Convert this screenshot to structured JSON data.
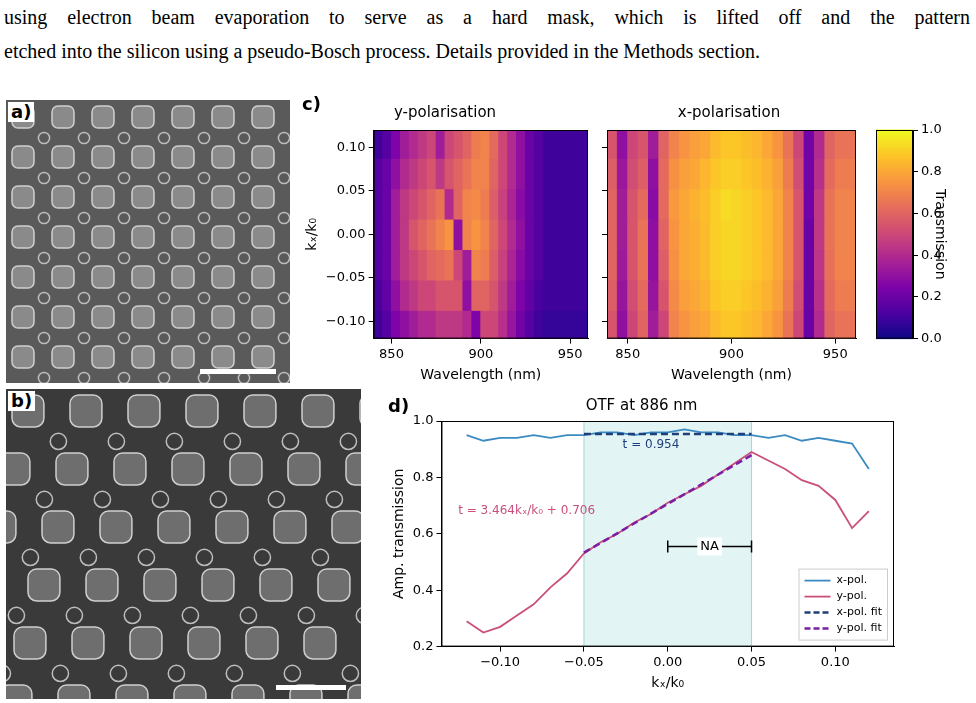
{
  "page_text": [
    "using electron beam evaporation to serve as a hard mask, which is lifted off and the pattern",
    "etched into the silicon using a pseudo-Bosch process. Details provided in the Methods section."
  ],
  "images": [
    {
      "label": "a)"
    },
    {
      "label": "b)"
    }
  ],
  "chart_data": [
    {
      "type": "heatmap",
      "label": "c)",
      "title": "y-polarisation",
      "x_label": "Wavelength (nm)",
      "y_label": "kₓ/k₀",
      "grid": false,
      "xlim": [
        840,
        960
      ],
      "xticks": [
        850,
        900,
        950
      ],
      "ylim": [
        -0.12,
        0.12
      ],
      "yticks": [
        {
          "value": -0.1,
          "label": "−0.10"
        },
        {
          "value": -0.05,
          "label": "−0.05"
        },
        {
          "value": 0,
          "label": "0.00"
        },
        {
          "value": 0.05,
          "label": "0.05"
        },
        {
          "value": 0.1,
          "label": "0.10"
        }
      ],
      "x": [
        842.5,
        847.5,
        852.5,
        857.5,
        862.5,
        867.5,
        872.5,
        877.5,
        882.5,
        887.5,
        892.5,
        897.5,
        902.5,
        907.5,
        912.5,
        917.5,
        922.5,
        927.5,
        932.5,
        937.5,
        942.5,
        947.5,
        952.5,
        957.5
      ],
      "y": [
        -0.105,
        -0.07,
        -0.035,
        0,
        0.035,
        0.07,
        0.105
      ],
      "values": [
        [
          0.1,
          0.15,
          0.25,
          0.3,
          0.35,
          0.4,
          0.4,
          0.45,
          0.45,
          0.45,
          0.4,
          0.25,
          0.5,
          0.5,
          0.42,
          0.32,
          0.22,
          0.15,
          0.1,
          0.08,
          0.08,
          0.08,
          0.08,
          0.08
        ],
        [
          0.12,
          0.18,
          0.3,
          0.4,
          0.45,
          0.5,
          0.5,
          0.55,
          0.55,
          0.55,
          0.3,
          0.6,
          0.6,
          0.55,
          0.45,
          0.35,
          0.25,
          0.18,
          0.12,
          0.1,
          0.1,
          0.1,
          0.1,
          0.1
        ],
        [
          0.15,
          0.2,
          0.35,
          0.45,
          0.5,
          0.55,
          0.6,
          0.62,
          0.65,
          0.5,
          0.35,
          0.7,
          0.68,
          0.58,
          0.48,
          0.38,
          0.28,
          0.2,
          0.15,
          0.1,
          0.1,
          0.1,
          0.1,
          0.1
        ],
        [
          0.15,
          0.2,
          0.35,
          0.45,
          0.55,
          0.6,
          0.65,
          0.7,
          0.75,
          0.3,
          0.7,
          0.75,
          0.7,
          0.6,
          0.5,
          0.4,
          0.3,
          0.2,
          0.15,
          0.1,
          0.1,
          0.1,
          0.1,
          0.1
        ],
        [
          0.15,
          0.2,
          0.35,
          0.45,
          0.5,
          0.55,
          0.6,
          0.65,
          0.4,
          0.6,
          0.7,
          0.72,
          0.68,
          0.58,
          0.48,
          0.38,
          0.28,
          0.2,
          0.15,
          0.1,
          0.1,
          0.1,
          0.1,
          0.1
        ],
        [
          0.15,
          0.2,
          0.3,
          0.4,
          0.45,
          0.5,
          0.55,
          0.45,
          0.55,
          0.6,
          0.65,
          0.7,
          0.7,
          0.6,
          0.5,
          0.4,
          0.3,
          0.2,
          0.15,
          0.1,
          0.1,
          0.1,
          0.1,
          0.1
        ],
        [
          0.1,
          0.15,
          0.25,
          0.35,
          0.4,
          0.45,
          0.5,
          0.35,
          0.5,
          0.55,
          0.6,
          0.68,
          0.7,
          0.62,
          0.5,
          0.4,
          0.3,
          0.2,
          0.15,
          0.1,
          0.1,
          0.1,
          0.1,
          0.1
        ]
      ]
    },
    {
      "type": "heatmap",
      "title": "x-polarisation",
      "x_label": "Wavelength (nm)",
      "grid": false,
      "tick_labels": "x",
      "xlim": [
        840,
        960
      ],
      "xticks": [
        850,
        900,
        950
      ],
      "ylim": [
        -0.12,
        0.12
      ],
      "yticks": [
        -0.1,
        -0.05,
        0,
        0.05,
        0.1
      ],
      "x": [
        842.5,
        847.5,
        852.5,
        857.5,
        862.5,
        867.5,
        872.5,
        877.5,
        882.5,
        887.5,
        892.5,
        897.5,
        902.5,
        907.5,
        912.5,
        917.5,
        922.5,
        927.5,
        932.5,
        937.5,
        942.5,
        947.5,
        952.5,
        957.5
      ],
      "y": [
        -0.105,
        -0.07,
        -0.035,
        0,
        0.035,
        0.07,
        0.105
      ],
      "values": [
        [
          0.55,
          0.3,
          0.5,
          0.6,
          0.35,
          0.5,
          0.7,
          0.75,
          0.78,
          0.8,
          0.85,
          0.88,
          0.88,
          0.86,
          0.84,
          0.8,
          0.75,
          0.65,
          0.5,
          0.2,
          0.4,
          0.6,
          0.65,
          0.65
        ],
        [
          0.58,
          0.32,
          0.52,
          0.62,
          0.32,
          0.55,
          0.72,
          0.78,
          0.8,
          0.83,
          0.88,
          0.9,
          0.9,
          0.88,
          0.86,
          0.83,
          0.78,
          0.68,
          0.52,
          0.2,
          0.42,
          0.62,
          0.68,
          0.68
        ],
        [
          0.6,
          0.34,
          0.55,
          0.65,
          0.3,
          0.58,
          0.74,
          0.8,
          0.82,
          0.85,
          0.9,
          0.92,
          0.92,
          0.9,
          0.88,
          0.85,
          0.8,
          0.7,
          0.55,
          0.2,
          0.44,
          0.64,
          0.7,
          0.7
        ],
        [
          0.6,
          0.35,
          0.55,
          0.65,
          0.3,
          0.6,
          0.75,
          0.8,
          0.82,
          0.85,
          0.9,
          0.92,
          0.92,
          0.9,
          0.88,
          0.85,
          0.8,
          0.7,
          0.55,
          0.2,
          0.45,
          0.65,
          0.7,
          0.7
        ],
        [
          0.6,
          0.35,
          0.55,
          0.62,
          0.28,
          0.62,
          0.76,
          0.8,
          0.83,
          0.86,
          0.9,
          0.93,
          0.92,
          0.9,
          0.88,
          0.85,
          0.8,
          0.7,
          0.55,
          0.22,
          0.45,
          0.65,
          0.7,
          0.7
        ],
        [
          0.58,
          0.33,
          0.52,
          0.58,
          0.3,
          0.62,
          0.74,
          0.78,
          0.8,
          0.84,
          0.88,
          0.9,
          0.9,
          0.88,
          0.86,
          0.83,
          0.78,
          0.68,
          0.52,
          0.22,
          0.42,
          0.62,
          0.68,
          0.68
        ],
        [
          0.55,
          0.3,
          0.5,
          0.55,
          0.35,
          0.6,
          0.7,
          0.75,
          0.78,
          0.8,
          0.85,
          0.88,
          0.88,
          0.86,
          0.84,
          0.8,
          0.75,
          0.65,
          0.5,
          0.22,
          0.4,
          0.6,
          0.65,
          0.65
        ]
      ],
      "colorbar": {
        "label": "Transmission",
        "range": [
          0,
          1
        ],
        "ticks": [
          {
            "value": 0,
            "label": "0.0"
          },
          0.2,
          0.4,
          0.6,
          0.8,
          {
            "value": 1,
            "label": "1.0"
          }
        ]
      }
    },
    {
      "type": "line",
      "label": "d)",
      "title": "OTF at 886 nm",
      "x_label": "kₓ/k₀",
      "y_label": "Amp. transmission",
      "grid": false,
      "legend": "lower right",
      "xlim": [
        -0.135,
        0.135
      ],
      "xticks": [
        {
          "value": -0.1,
          "label": "−0.10"
        },
        {
          "value": -0.05,
          "label": "−0.05"
        },
        {
          "value": 0,
          "label": "0.00"
        },
        {
          "value": 0.05,
          "label": "0.05"
        },
        {
          "value": 0.1,
          "label": "0.10"
        }
      ],
      "ylim": [
        0.2,
        1.0
      ],
      "yticks": [
        0.2,
        0.4,
        0.6,
        0.8,
        {
          "value": 1,
          "label": "1.0"
        }
      ],
      "x": [
        -0.12,
        -0.11,
        -0.1,
        -0.09,
        -0.08,
        -0.07,
        -0.06,
        -0.05,
        -0.04,
        -0.03,
        -0.02,
        -0.01,
        0,
        0.01,
        0.02,
        0.03,
        0.04,
        0.05,
        0.06,
        0.07,
        0.08,
        0.09,
        0.1,
        0.11,
        0.12
      ],
      "series": [
        {
          "name": "x-pol.",
          "color": "#3b8bc2",
          "line_style": "solid",
          "values": [
            0.95,
            0.93,
            0.94,
            0.94,
            0.95,
            0.94,
            0.95,
            0.95,
            0.96,
            0.96,
            0.95,
            0.96,
            0.96,
            0.97,
            0.96,
            0.96,
            0.95,
            0.95,
            0.94,
            0.95,
            0.93,
            0.94,
            0.93,
            0.92,
            0.83
          ]
        },
        {
          "name": "y-pol.",
          "color": "#c94f7c",
          "line_style": "solid",
          "values": [
            0.29,
            0.25,
            0.27,
            0.31,
            0.35,
            0.41,
            0.46,
            0.53,
            0.57,
            0.6,
            0.64,
            0.67,
            0.71,
            0.74,
            0.77,
            0.81,
            0.85,
            0.89,
            0.86,
            0.83,
            0.79,
            0.77,
            0.72,
            0.62,
            0.68
          ]
        },
        {
          "name": "x-pol. fit",
          "color": "#1f3f7a",
          "line_style": "dashed",
          "x": [
            -0.05,
            0.05
          ],
          "values": [
            0.954,
            0.954
          ]
        },
        {
          "name": "y-pol. fit",
          "color": "#7b1fa2",
          "line_style": "dashed",
          "x": [
            -0.05,
            0.05
          ],
          "values": [
            0.533,
            0.879
          ]
        }
      ],
      "shaded_band": [
        -0.05,
        0.05
      ],
      "bracket": {
        "text": "NA",
        "x": [
          0,
          0.05
        ],
        "y": 0.555
      },
      "annotations": [
        {
          "text": "t = 0.954",
          "x": -0.01,
          "y": 0.915,
          "color": "#1f3f7a"
        },
        {
          "text": "t = 3.464kₓ/k₀ + 0.706",
          "x": -0.125,
          "y": 0.68,
          "color": "#c94f7c"
        }
      ]
    }
  ]
}
